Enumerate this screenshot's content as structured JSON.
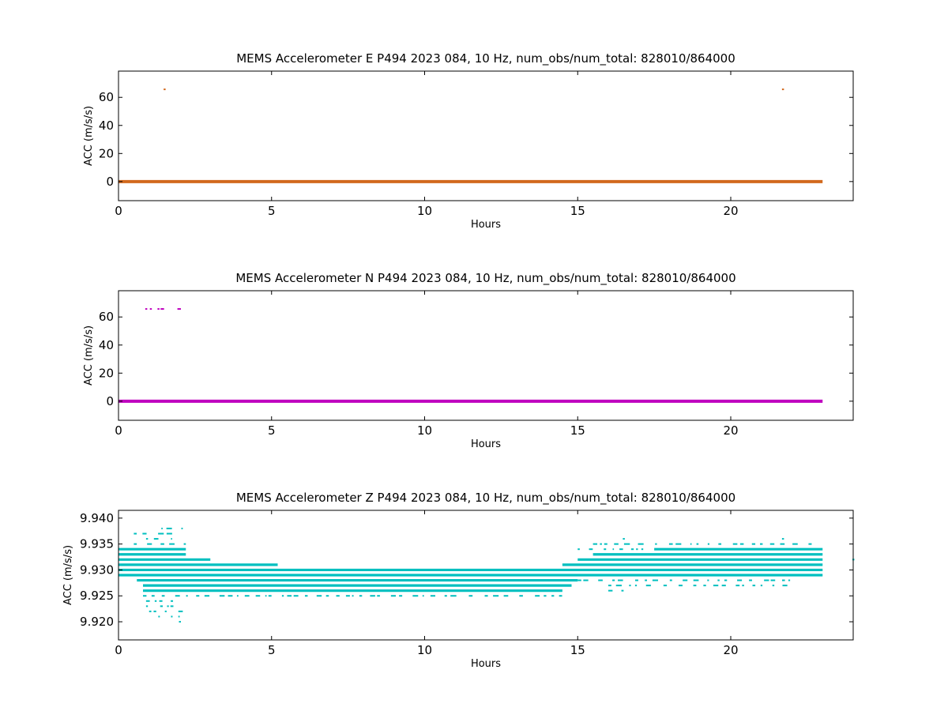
{
  "figure": {
    "background": "#ffffff"
  },
  "chart_data": [
    {
      "type": "scatter",
      "title": "MEMS Accelerometer E P494 2023 084, 10 Hz, num_obs/num_total: 828010/864000",
      "xlabel": "Hours",
      "ylabel": "ACC (m/s/s)",
      "xlim": [
        0,
        24
      ],
      "ylim": [
        -13.6,
        78.7
      ],
      "xticks": [
        0,
        5,
        10,
        15,
        20
      ],
      "yticks": [
        0,
        20,
        40,
        60
      ],
      "ytick_labels": [
        "0",
        "20",
        "40",
        "60"
      ],
      "color": "#d2691e",
      "grid": false,
      "legend": "none",
      "series": [
        {
          "baseline": {
            "x_start": 0.0,
            "x_end": 23.0,
            "y": 0.0
          },
          "points": [
            {
              "x": 1.5,
              "y": 65.7
            },
            {
              "x": 21.7,
              "y": 65.7
            }
          ]
        }
      ]
    },
    {
      "type": "scatter",
      "title": "MEMS Accelerometer N P494 2023 084, 10 Hz, num_obs/num_total: 828010/864000",
      "xlabel": "Hours",
      "ylabel": "ACC (m/s/s)",
      "xlim": [
        0,
        24
      ],
      "ylim": [
        -13.6,
        78.7
      ],
      "xticks": [
        0,
        5,
        10,
        15,
        20
      ],
      "yticks": [
        0,
        20,
        40,
        60
      ],
      "ytick_labels": [
        "0",
        "20",
        "40",
        "60"
      ],
      "color": "#bf00bf",
      "grid": false,
      "legend": "none",
      "series": [
        {
          "baseline": {
            "x_start": 0.0,
            "x_end": 23.0,
            "y": 0.0
          },
          "points": [
            {
              "x": 0.9,
              "y": 65.7
            },
            {
              "x": 1.05,
              "y": 65.7
            },
            {
              "x": 1.3,
              "y": 65.7
            },
            {
              "x": 1.4,
              "y": 65.7
            },
            {
              "x": 1.45,
              "y": 65.7
            },
            {
              "x": 1.95,
              "y": 65.7
            },
            {
              "x": 2.0,
              "y": 65.7
            }
          ]
        }
      ]
    },
    {
      "type": "scatter",
      "title": "MEMS Accelerometer Z P494 2023 084, 10 Hz, num_obs/num_total: 828010/864000",
      "xlabel": "Hours",
      "ylabel": "ACC (m/s/s)",
      "xlim": [
        0,
        24
      ],
      "ylim": [
        9.9165,
        9.9415
      ],
      "xticks": [
        0,
        5,
        10,
        15,
        20
      ],
      "yticks": [
        9.92,
        9.925,
        9.93,
        9.935,
        9.94
      ],
      "ytick_labels": [
        "9.920",
        "9.925",
        "9.930",
        "9.935",
        "9.940"
      ],
      "color": "#00bfbf",
      "grid": false,
      "legend": "none",
      "series": [
        {
          "bands": [
            {
              "y": 9.934,
              "x_start": 0.0,
              "x_end": 2.2
            },
            {
              "y": 9.933,
              "x_start": 0.0,
              "x_end": 2.2
            },
            {
              "y": 9.932,
              "x_start": 0.0,
              "x_end": 3.0
            },
            {
              "y": 9.931,
              "x_start": 0.0,
              "x_end": 5.2
            },
            {
              "y": 9.93,
              "x_start": 0.0,
              "x_end": 23.0
            },
            {
              "y": 9.929,
              "x_start": 0.0,
              "x_end": 23.0
            },
            {
              "y": 9.928,
              "x_start": 0.6,
              "x_end": 15.0
            },
            {
              "y": 9.927,
              "x_start": 0.8,
              "x_end": 14.8
            },
            {
              "y": 9.926,
              "x_start": 0.8,
              "x_end": 14.5
            },
            {
              "y": 9.933,
              "x_start": 15.5,
              "x_end": 23.0
            },
            {
              "y": 9.932,
              "x_start": 15.0,
              "x_end": 23.0
            },
            {
              "y": 9.931,
              "x_start": 14.5,
              "x_end": 23.0
            },
            {
              "y": 9.934,
              "x_start": 17.5,
              "x_end": 23.0
            }
          ],
          "scatter_rows": [
            {
              "y": 9.938,
              "x_start": 1.4,
              "x_end": 2.1
            },
            {
              "y": 9.937,
              "x_start": 0.5,
              "x_end": 2.0
            },
            {
              "y": 9.936,
              "x_start": 0.9,
              "x_end": 2.0
            },
            {
              "y": 9.935,
              "x_start": 0.5,
              "x_end": 2.2
            },
            {
              "y": 9.925,
              "x_start": 0.8,
              "x_end": 14.5
            },
            {
              "y": 9.924,
              "x_start": 0.9,
              "x_end": 2.0
            },
            {
              "y": 9.923,
              "x_start": 0.9,
              "x_end": 2.1
            },
            {
              "y": 9.922,
              "x_start": 1.0,
              "x_end": 2.1
            },
            {
              "y": 9.921,
              "x_start": 1.3,
              "x_end": 2.0
            },
            {
              "y": 9.935,
              "x_start": 15.5,
              "x_end": 23.0
            },
            {
              "y": 9.934,
              "x_start": 15.0,
              "x_end": 17.5
            },
            {
              "y": 9.928,
              "x_start": 15.0,
              "x_end": 22.0
            },
            {
              "y": 9.927,
              "x_start": 16.0,
              "x_end": 22.0
            },
            {
              "y": 9.926,
              "x_start": 16.0,
              "x_end": 16.5
            }
          ],
          "points": [
            {
              "x": 2.0,
              "y": 9.92
            },
            {
              "x": 16.5,
              "y": 9.936
            },
            {
              "x": 21.7,
              "y": 9.936
            },
            {
              "x": 24.0,
              "y": 9.932
            }
          ]
        }
      ]
    }
  ]
}
